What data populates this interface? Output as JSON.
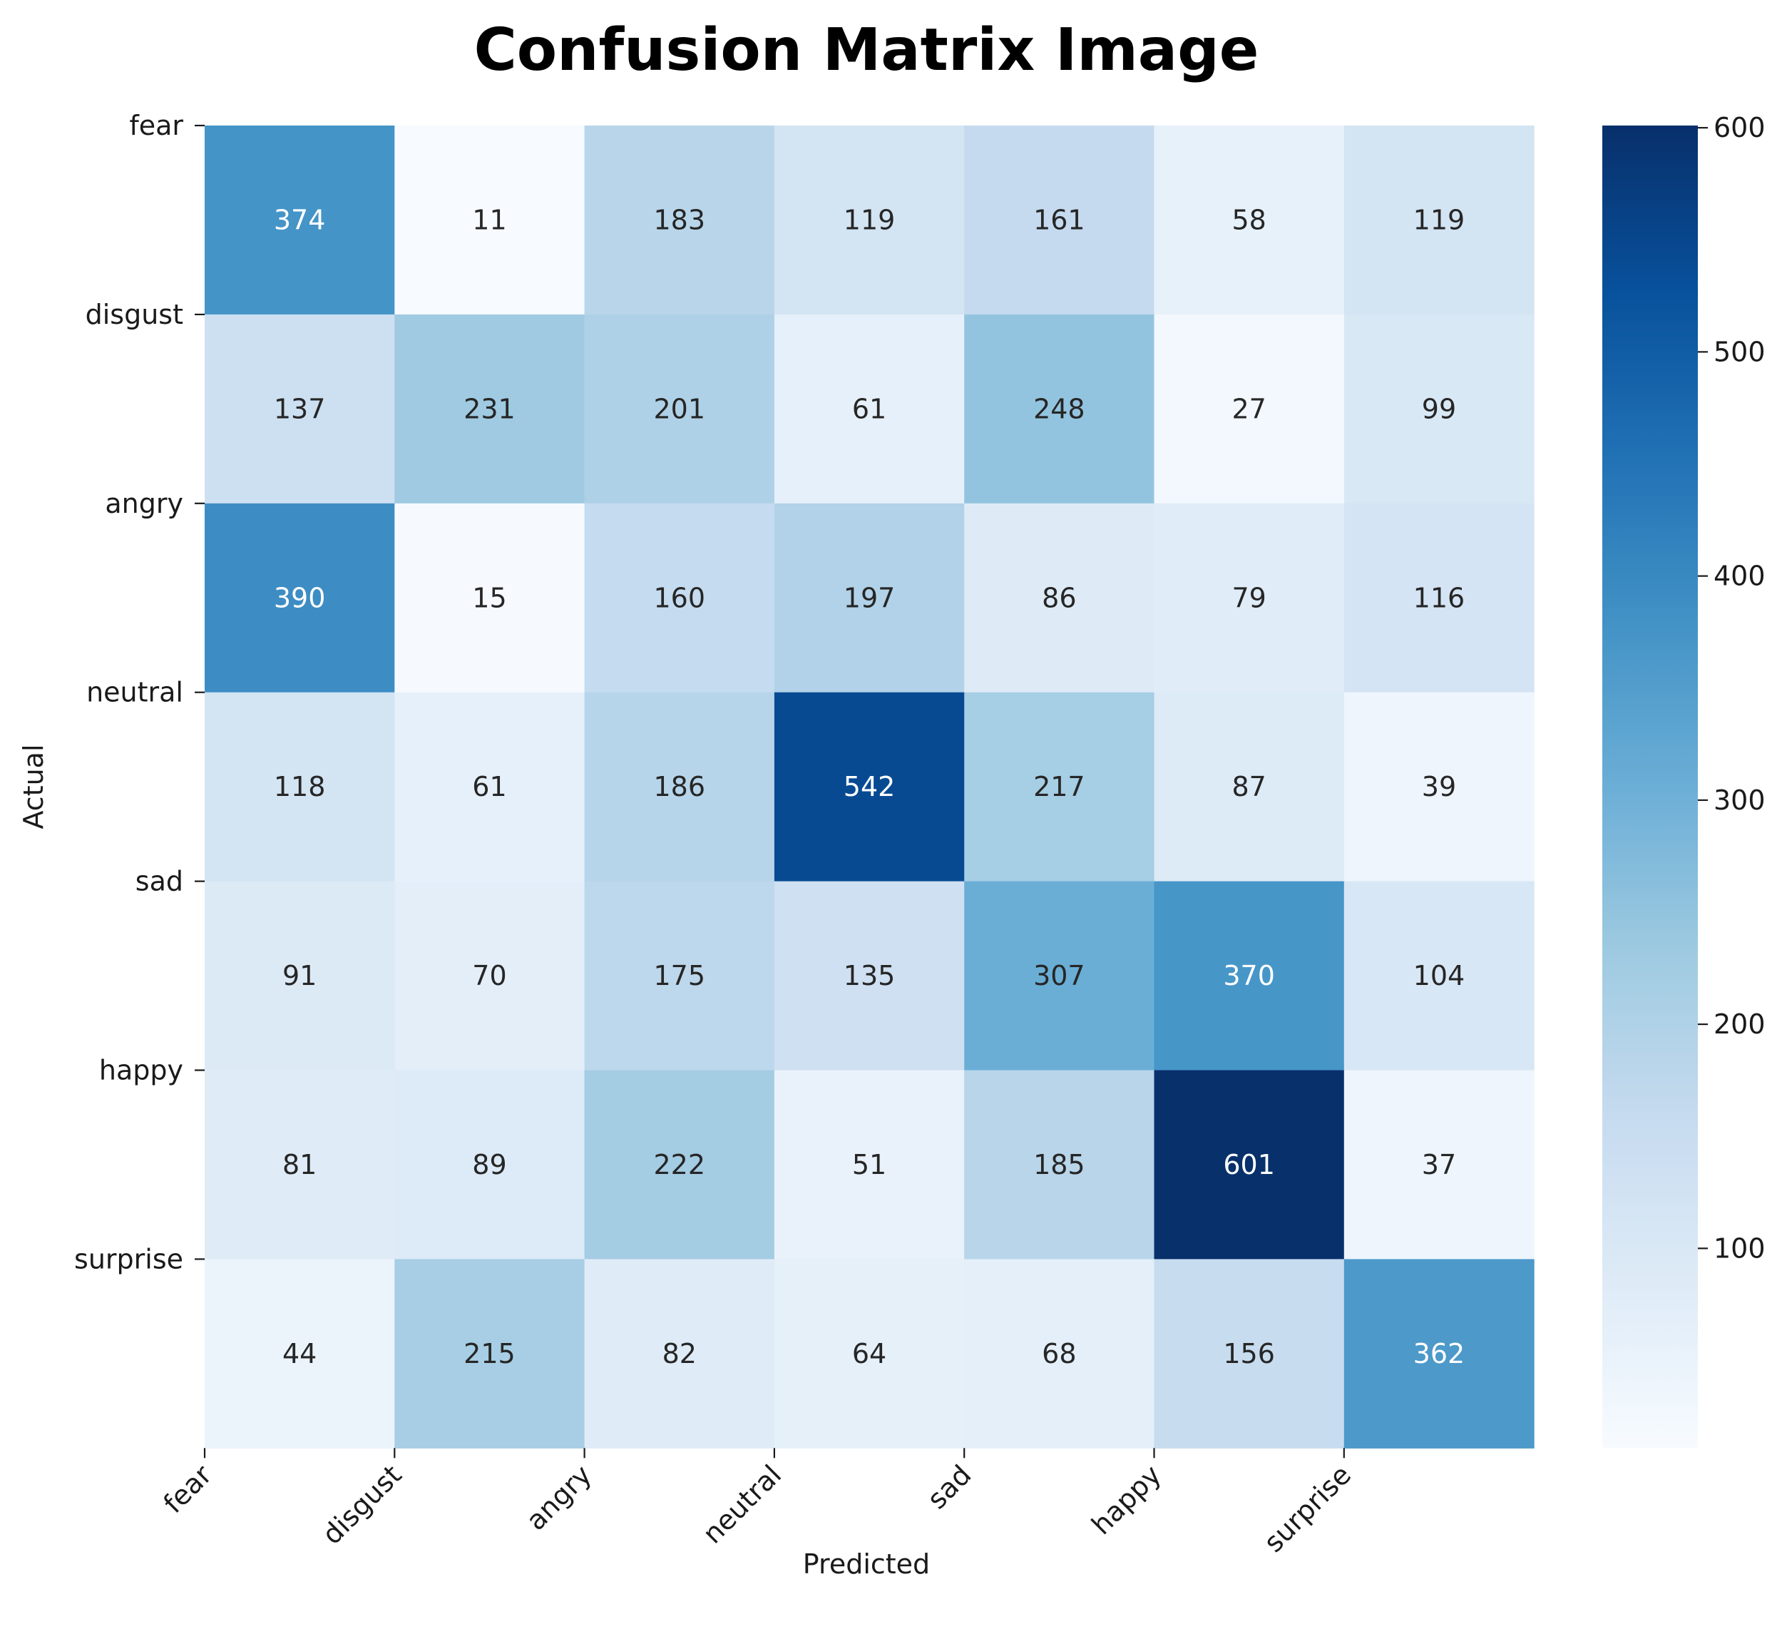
{
  "chart_data": {
    "type": "heatmap",
    "title": "Confusion Matrix Image",
    "xlabel": "Predicted",
    "ylabel": "Actual",
    "x_categories": [
      "fear",
      "disgust",
      "angry",
      "neutral",
      "sad",
      "happy",
      "surprise"
    ],
    "y_categories": [
      "fear",
      "disgust",
      "angry",
      "neutral",
      "sad",
      "happy",
      "surprise"
    ],
    "values": [
      [
        374,
        11,
        183,
        119,
        161,
        58,
        119
      ],
      [
        137,
        231,
        201,
        61,
        248,
        27,
        99
      ],
      [
        390,
        15,
        160,
        197,
        86,
        79,
        116
      ],
      [
        118,
        61,
        186,
        542,
        217,
        87,
        39
      ],
      [
        91,
        70,
        175,
        135,
        307,
        370,
        104
      ],
      [
        81,
        89,
        222,
        51,
        185,
        601,
        37
      ],
      [
        44,
        215,
        82,
        64,
        68,
        156,
        362
      ]
    ],
    "colormap": "Blues",
    "color_range": [
      11,
      601
    ],
    "colorbar_ticks": [
      100,
      200,
      300,
      400,
      500,
      600
    ],
    "grid": false,
    "legend": "colorbar-right"
  }
}
